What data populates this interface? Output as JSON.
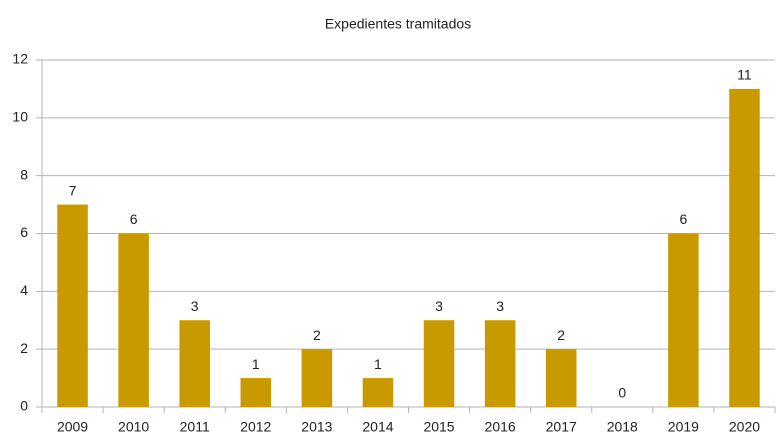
{
  "chart_data": {
    "type": "bar",
    "title": "Expedientes tramitados",
    "categories": [
      "2009",
      "2010",
      "2011",
      "2012",
      "2013",
      "2014",
      "2015",
      "2016",
      "2017",
      "2018",
      "2019",
      "2020"
    ],
    "values": [
      7,
      6,
      3,
      1,
      2,
      1,
      3,
      3,
      2,
      0,
      6,
      11
    ],
    "color": "#c99a00",
    "ylim": [
      0,
      12
    ],
    "yticks": [
      0,
      2,
      4,
      6,
      8,
      10,
      12
    ],
    "grid": true
  }
}
